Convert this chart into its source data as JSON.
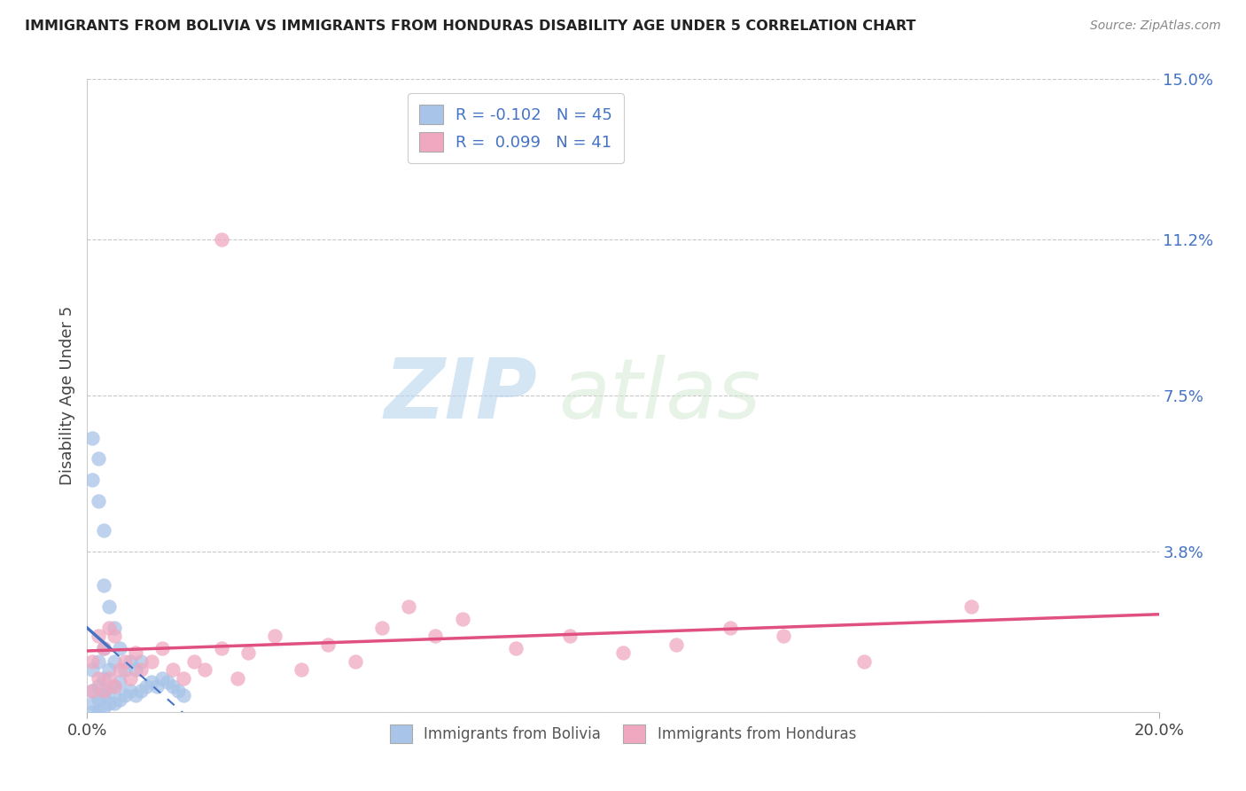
{
  "title": "IMMIGRANTS FROM BOLIVIA VS IMMIGRANTS FROM HONDURAS DISABILITY AGE UNDER 5 CORRELATION CHART",
  "source": "Source: ZipAtlas.com",
  "ylabel": "Disability Age Under 5",
  "xlim": [
    0.0,
    0.2
  ],
  "ylim": [
    0.0,
    0.15
  ],
  "ytick_values": [
    0.0,
    0.038,
    0.075,
    0.112,
    0.15
  ],
  "ytick_labels": [
    "",
    "3.8%",
    "7.5%",
    "11.2%",
    "15.0%"
  ],
  "bolivia_color": "#a8c4e8",
  "honduras_color": "#f0a8c0",
  "bolivia_line_color": "#4472c4",
  "honduras_line_color": "#e05080",
  "legend_bolivia": "R = -0.102   N = 45",
  "legend_honduras": "R =  0.099   N = 41",
  "watermark_zip": "ZIP",
  "watermark_atlas": "atlas",
  "background_color": "#ffffff",
  "grid_color": "#c8c8c8",
  "bolivia_x": [
    0.001,
    0.001,
    0.001,
    0.001,
    0.002,
    0.002,
    0.002,
    0.002,
    0.003,
    0.003,
    0.003,
    0.003,
    0.004,
    0.004,
    0.004,
    0.005,
    0.005,
    0.005,
    0.006,
    0.006,
    0.006,
    0.007,
    0.007,
    0.008,
    0.008,
    0.009,
    0.009,
    0.01,
    0.01,
    0.011,
    0.012,
    0.013,
    0.014,
    0.015,
    0.016,
    0.017,
    0.018,
    0.001,
    0.002,
    0.003,
    0.001,
    0.002,
    0.003,
    0.004,
    0.005
  ],
  "bolivia_y": [
    0.0,
    0.002,
    0.005,
    0.01,
    0.0,
    0.003,
    0.006,
    0.012,
    0.001,
    0.004,
    0.008,
    0.015,
    0.002,
    0.005,
    0.01,
    0.002,
    0.006,
    0.012,
    0.003,
    0.007,
    0.015,
    0.004,
    0.01,
    0.005,
    0.012,
    0.004,
    0.01,
    0.005,
    0.012,
    0.006,
    0.007,
    0.006,
    0.008,
    0.007,
    0.006,
    0.005,
    0.004,
    0.055,
    0.05,
    0.043,
    0.065,
    0.06,
    0.03,
    0.025,
    0.02
  ],
  "honduras_x": [
    0.001,
    0.001,
    0.002,
    0.002,
    0.003,
    0.003,
    0.004,
    0.004,
    0.005,
    0.005,
    0.006,
    0.007,
    0.008,
    0.009,
    0.01,
    0.012,
    0.014,
    0.016,
    0.018,
    0.02,
    0.022,
    0.025,
    0.028,
    0.03,
    0.035,
    0.04,
    0.045,
    0.05,
    0.055,
    0.06,
    0.065,
    0.07,
    0.08,
    0.09,
    0.1,
    0.11,
    0.12,
    0.13,
    0.145,
    0.165,
    0.025
  ],
  "honduras_y": [
    0.005,
    0.012,
    0.008,
    0.018,
    0.005,
    0.015,
    0.008,
    0.02,
    0.006,
    0.018,
    0.01,
    0.012,
    0.008,
    0.014,
    0.01,
    0.012,
    0.015,
    0.01,
    0.008,
    0.012,
    0.01,
    0.015,
    0.008,
    0.014,
    0.018,
    0.01,
    0.016,
    0.012,
    0.02,
    0.025,
    0.018,
    0.022,
    0.015,
    0.018,
    0.014,
    0.016,
    0.02,
    0.018,
    0.012,
    0.025,
    0.112
  ]
}
